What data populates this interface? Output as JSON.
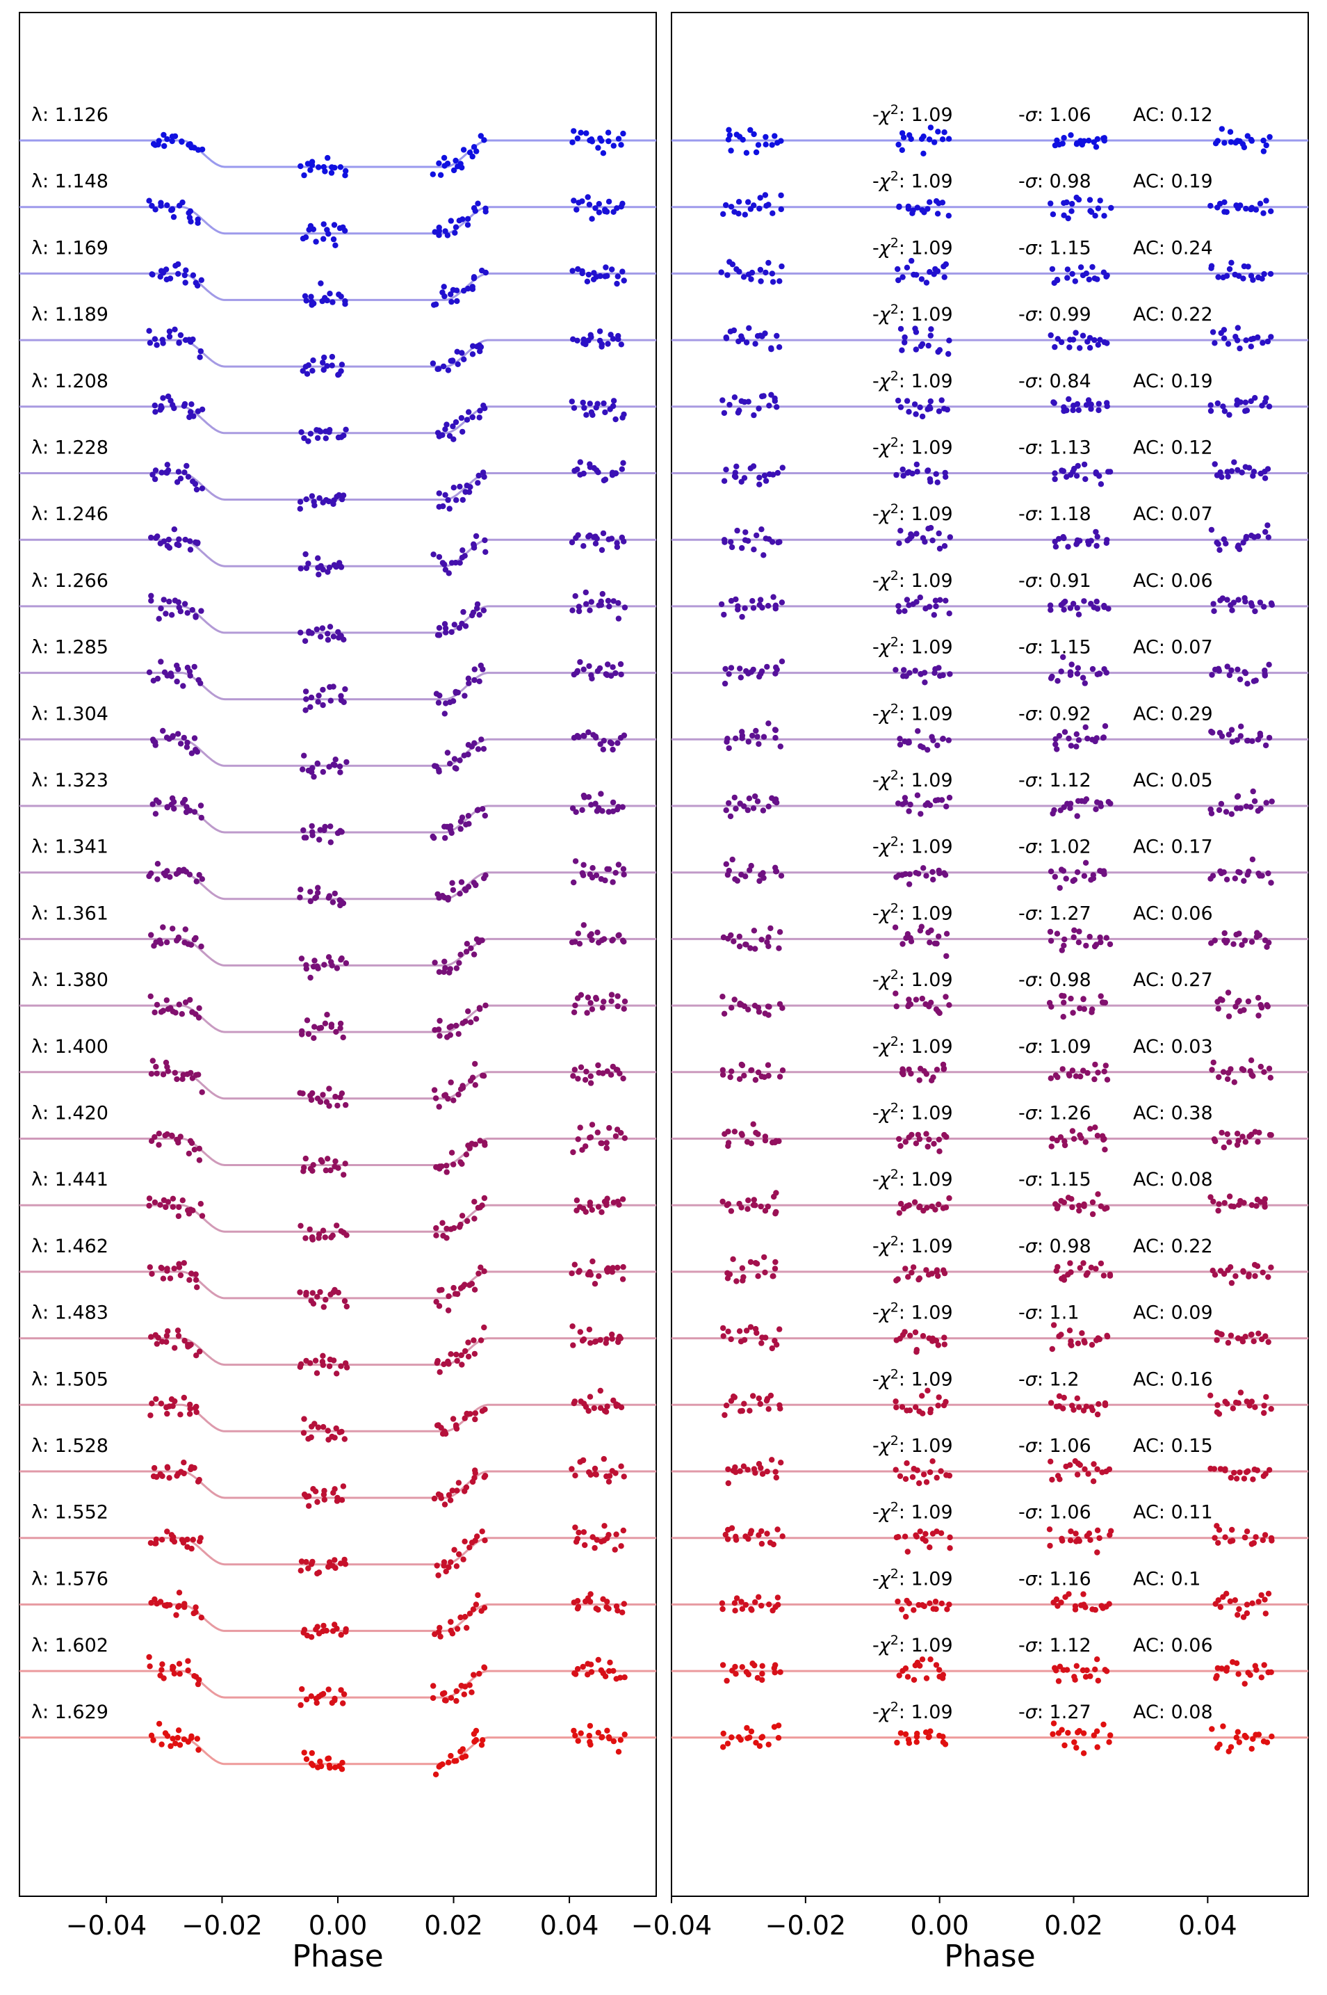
{
  "chart_data": [
    {
      "type": "scatter",
      "panel": "transit light curves with model",
      "xlabel": "Phase",
      "xlim": [
        -0.055,
        0.055
      ],
      "xticks": [
        -0.04,
        -0.02,
        0.0,
        0.02,
        0.04
      ],
      "xtick_labels": [
        "−0.04",
        "−0.02",
        "0.00",
        "0.02",
        "0.04"
      ],
      "color_start": "#1010e0",
      "color_end": "#e01010",
      "model_color_start": "#9a9aee",
      "model_color_end": "#ee9a9a",
      "transit_depth_relative": 0.4,
      "ingress_phase": [
        -0.027,
        -0.0195
      ],
      "egress_phase": [
        0.0185,
        0.026
      ],
      "data_phases": {
        "group1": [
          -0.032,
          -0.031,
          -0.03,
          -0.029,
          -0.028,
          -0.027,
          -0.026,
          -0.025,
          -0.024
        ],
        "group2": [
          -0.006,
          -0.005,
          -0.004,
          -0.003,
          -0.002,
          -0.001,
          0.0,
          0.001
        ],
        "group3": [
          0.017,
          0.018,
          0.019,
          0.02,
          0.021,
          0.022,
          0.023,
          0.024,
          0.025
        ],
        "group4": [
          0.041,
          0.042,
          0.043,
          0.044,
          0.045,
          0.046,
          0.047,
          0.048,
          0.049
        ]
      },
      "series": [
        {
          "label": "λ: 1.126"
        },
        {
          "label": "λ: 1.148"
        },
        {
          "label": "λ: 1.169"
        },
        {
          "label": "λ: 1.189"
        },
        {
          "label": "λ: 1.208"
        },
        {
          "label": "λ: 1.228"
        },
        {
          "label": "λ: 1.246"
        },
        {
          "label": "λ: 1.266"
        },
        {
          "label": "λ: 1.285"
        },
        {
          "label": "λ: 1.304"
        },
        {
          "label": "λ: 1.323"
        },
        {
          "label": "λ: 1.341"
        },
        {
          "label": "λ: 1.361"
        },
        {
          "label": "λ: 1.380"
        },
        {
          "label": "λ: 1.400"
        },
        {
          "label": "λ: 1.420"
        },
        {
          "label": "λ: 1.441"
        },
        {
          "label": "λ: 1.462"
        },
        {
          "label": "λ: 1.483"
        },
        {
          "label": "λ: 1.505"
        },
        {
          "label": "λ: 1.528"
        },
        {
          "label": "λ: 1.552"
        },
        {
          "label": "λ: 1.576"
        },
        {
          "label": "λ: 1.602"
        },
        {
          "label": "λ: 1.629"
        }
      ]
    },
    {
      "type": "scatter",
      "panel": "residuals",
      "xlabel": "Phase",
      "xlim": [
        -0.04,
        0.055
      ],
      "xticks": [
        -0.04,
        -0.02,
        0.0,
        0.02,
        0.04
      ],
      "xtick_labels": [
        "−0.04",
        "−0.02",
        "0.00",
        "0.02",
        "0.04"
      ],
      "series": [
        {
          "chi2": "1.09",
          "sigma": "1.06",
          "ac": "0.12"
        },
        {
          "chi2": "1.09",
          "sigma": "0.98",
          "ac": "0.19"
        },
        {
          "chi2": "1.09",
          "sigma": "1.15",
          "ac": "0.24"
        },
        {
          "chi2": "1.09",
          "sigma": "0.99",
          "ac": "0.22"
        },
        {
          "chi2": "1.09",
          "sigma": "0.84",
          "ac": "0.19"
        },
        {
          "chi2": "1.09",
          "sigma": "1.13",
          "ac": "0.12"
        },
        {
          "chi2": "1.09",
          "sigma": "1.18",
          "ac": "0.07"
        },
        {
          "chi2": "1.09",
          "sigma": "0.91",
          "ac": "0.06"
        },
        {
          "chi2": "1.09",
          "sigma": "1.15",
          "ac": "0.07"
        },
        {
          "chi2": "1.09",
          "sigma": "0.92",
          "ac": "0.29"
        },
        {
          "chi2": "1.09",
          "sigma": "1.12",
          "ac": "0.05"
        },
        {
          "chi2": "1.09",
          "sigma": "1.02",
          "ac": "0.17"
        },
        {
          "chi2": "1.09",
          "sigma": "1.27",
          "ac": "0.06"
        },
        {
          "chi2": "1.09",
          "sigma": "0.98",
          "ac": "0.27"
        },
        {
          "chi2": "1.09",
          "sigma": "1.09",
          "ac": "0.03"
        },
        {
          "chi2": "1.09",
          "sigma": "1.26",
          "ac": "0.38"
        },
        {
          "chi2": "1.09",
          "sigma": "1.15",
          "ac": "0.08"
        },
        {
          "chi2": "1.09",
          "sigma": "0.98",
          "ac": "0.22"
        },
        {
          "chi2": "1.09",
          "sigma": "1.1",
          "ac": "0.09"
        },
        {
          "chi2": "1.09",
          "sigma": "1.2",
          "ac": "0.16"
        },
        {
          "chi2": "1.09",
          "sigma": "1.06",
          "ac": "0.15"
        },
        {
          "chi2": "1.09",
          "sigma": "1.06",
          "ac": "0.11"
        },
        {
          "chi2": "1.09",
          "sigma": "1.16",
          "ac": "0.1"
        },
        {
          "chi2": "1.09",
          "sigma": "1.12",
          "ac": "0.06"
        },
        {
          "chi2": "1.09",
          "sigma": "1.27",
          "ac": "0.08"
        }
      ],
      "annotation_prefixes": {
        "chi2": "χ",
        "sigma": "σ",
        "ac": "AC: "
      }
    }
  ]
}
